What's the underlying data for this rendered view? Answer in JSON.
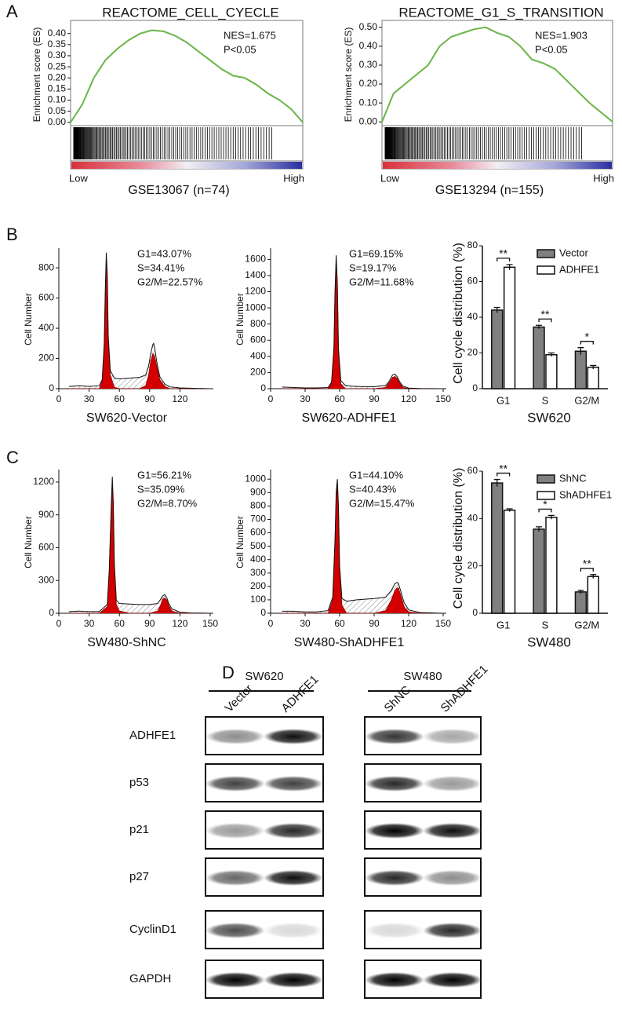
{
  "panel_labels": [
    "A",
    "B",
    "C",
    "D"
  ],
  "chart_data": [
    {
      "type": "line",
      "title": "REACTOME_CELL_CYECLE",
      "y_label": "Enrichment score (ES)",
      "x_label": "GSE13067 (n=74)",
      "x_low": "Low",
      "x_high": "High",
      "annotations": [
        "NES=1.675",
        "P<0.05"
      ],
      "color": "#6ab547",
      "ylim": [
        -0.015,
        0.445
      ],
      "yticks": [
        {
          "value": 0,
          "label": "0.00"
        },
        {
          "value": 0.05,
          "label": "0.05"
        },
        {
          "value": 0.1,
          "label": "0.10"
        },
        {
          "value": 0.15,
          "label": "0.15"
        },
        {
          "value": 0.2,
          "label": "0.20"
        },
        {
          "value": 0.25,
          "label": "0.25"
        },
        {
          "value": 0.3,
          "label": "0.30"
        },
        {
          "value": 0.35,
          "label": "0.35"
        },
        {
          "value": 0.4,
          "label": "0.40"
        }
      ],
      "values": [
        0,
        0.08,
        0.2,
        0.28,
        0.33,
        0.37,
        0.4,
        0.415,
        0.41,
        0.39,
        0.36,
        0.32,
        0.28,
        0.24,
        0.21,
        0.2,
        0.17,
        0.13,
        0.1,
        0.06,
        0
      ]
    },
    {
      "type": "line",
      "title": "REACTOME_G1_S_TRANSITION",
      "y_label": "Enrichment score (ES)",
      "x_label": "GSE13294 (n=155)",
      "x_low": "Low",
      "x_high": "High",
      "annotations": [
        "NES=1.903",
        "P<0.05"
      ],
      "color": "#6ab547",
      "ylim": [
        -0.02,
        0.52
      ],
      "yticks": [
        {
          "value": 0,
          "label": "0.00"
        },
        {
          "value": 0.1,
          "label": "0.10"
        },
        {
          "value": 0.2,
          "label": "0.20"
        },
        {
          "value": 0.3,
          "label": "0.30"
        },
        {
          "value": 0.4,
          "label": "0.40"
        },
        {
          "value": 0.5,
          "label": "0.50"
        }
      ],
      "values": [
        0,
        0.15,
        0.2,
        0.25,
        0.3,
        0.4,
        0.45,
        0.47,
        0.49,
        0.5,
        0.47,
        0.45,
        0.4,
        0.33,
        0.31,
        0.28,
        0.22,
        0.16,
        0.1,
        0.05,
        0
      ]
    },
    {
      "type": "area",
      "y_label": "Cell Number",
      "x_label": "SW620-Vector",
      "annotations": [
        "G1=43.07%",
        "S=34.41%",
        "G2/M=22.57%"
      ],
      "color": "#d40000",
      "xlim": [
        0,
        150
      ],
      "xticks": [
        0,
        30,
        60,
        90,
        120
      ],
      "ylim": [
        0,
        920
      ],
      "yticks": [
        0,
        200,
        400,
        600,
        800
      ],
      "x": [
        10,
        20,
        30,
        40,
        43,
        45,
        46,
        47,
        48,
        49,
        51,
        55,
        60,
        70,
        80,
        86,
        89,
        91,
        93,
        94,
        95,
        97,
        100,
        105,
        110,
        120,
        130,
        150
      ],
      "values": [
        15,
        20,
        15,
        20,
        60,
        300,
        650,
        900,
        750,
        350,
        120,
        70,
        65,
        70,
        75,
        90,
        150,
        230,
        290,
        300,
        270,
        180,
        80,
        30,
        12,
        5,
        3,
        0
      ],
      "fit_values": [
        0,
        0,
        0,
        0,
        50,
        280,
        620,
        860,
        720,
        330,
        90,
        10,
        0,
        0,
        0,
        20,
        90,
        180,
        230,
        230,
        210,
        150,
        60,
        15,
        0,
        0,
        0,
        0
      ]
    },
    {
      "type": "area",
      "y_label": "Cell Number",
      "x_label": "SW620-ADHFE1",
      "annotations": [
        "G1=69.15%",
        "S=19.17%",
        "G2/M=11.68%"
      ],
      "color": "#d40000",
      "xlim": [
        0,
        150
      ],
      "xticks": [
        0,
        30,
        60,
        90,
        120,
        150
      ],
      "ylim": [
        0,
        1720
      ],
      "yticks": [
        0,
        200,
        400,
        600,
        800,
        1000,
        1200,
        1400,
        1600
      ],
      "x": [
        10,
        20,
        30,
        40,
        50,
        53,
        55,
        56,
        57,
        58,
        59,
        61,
        65,
        70,
        80,
        90,
        100,
        103,
        106,
        108,
        110,
        112,
        115,
        120,
        130,
        150
      ],
      "values": [
        20,
        15,
        10,
        10,
        15,
        80,
        500,
        1200,
        1650,
        1300,
        500,
        100,
        40,
        30,
        25,
        25,
        40,
        90,
        170,
        180,
        150,
        90,
        30,
        8,
        2,
        0
      ],
      "fit_values": [
        0,
        0,
        0,
        0,
        0,
        70,
        480,
        1150,
        1600,
        1250,
        470,
        60,
        0,
        0,
        0,
        0,
        15,
        70,
        140,
        150,
        130,
        70,
        15,
        0,
        0,
        0
      ]
    },
    {
      "type": "bar",
      "y_label": "Cell cycle distribution (%)",
      "x_label": "SW620",
      "categories": [
        "G1",
        "S",
        "G2/M"
      ],
      "ylim": [
        0,
        80
      ],
      "yticks": [
        0,
        20,
        40,
        60,
        80
      ],
      "significance": [
        "**",
        "**",
        "*"
      ],
      "series": [
        {
          "name": "Vector",
          "color": "#808080",
          "values": [
            44,
            34.5,
            21
          ],
          "errors": [
            1.5,
            1,
            2
          ]
        },
        {
          "name": "ADHFE1",
          "color": "#ffffff",
          "values": [
            68,
            19,
            12
          ],
          "errors": [
            1.5,
            1,
            1
          ]
        }
      ]
    },
    {
      "type": "area",
      "y_label": "Cell Number",
      "x_label": "SW480-ShNC",
      "annotations": [
        "G1=56.21%",
        "S=35.09%",
        "G2/M=8.70%"
      ],
      "color": "#d40000",
      "xlim": [
        0,
        150
      ],
      "xticks": [
        0,
        30,
        60,
        90,
        120,
        150
      ],
      "ylim": [
        0,
        1300
      ],
      "yticks": [
        0,
        300,
        600,
        900,
        1200
      ],
      "x": [
        10,
        20,
        30,
        40,
        48,
        50,
        52,
        53,
        54,
        55,
        57,
        60,
        70,
        80,
        90,
        98,
        101,
        103,
        105,
        107,
        109,
        112,
        120,
        130,
        150
      ],
      "values": [
        15,
        20,
        15,
        15,
        80,
        400,
        1000,
        1250,
        1000,
        450,
        120,
        90,
        85,
        80,
        80,
        90,
        130,
        160,
        170,
        140,
        90,
        40,
        10,
        3,
        0
      ],
      "fit_values": [
        0,
        0,
        0,
        0,
        60,
        380,
        960,
        1200,
        960,
        420,
        80,
        20,
        0,
        0,
        0,
        20,
        80,
        130,
        140,
        120,
        70,
        20,
        0,
        0,
        0
      ]
    },
    {
      "type": "area",
      "y_label": "Cell Number",
      "x_label": "SW480-ShADHFE1",
      "annotations": [
        "G1=44.10%",
        "S=40.43%",
        "G2/M=15.47%"
      ],
      "color": "#d40000",
      "xlim": [
        0,
        150
      ],
      "xticks": [
        0,
        30,
        60,
        90,
        120,
        150
      ],
      "ylim": [
        0,
        1060
      ],
      "yticks": [
        0,
        100,
        200,
        300,
        400,
        500,
        600,
        700,
        800,
        900,
        1000
      ],
      "x": [
        10,
        20,
        30,
        40,
        50,
        54,
        56,
        57,
        58,
        59,
        60,
        62,
        66,
        75,
        90,
        100,
        105,
        108,
        110,
        111,
        113,
        116,
        120,
        130,
        150
      ],
      "values": [
        15,
        15,
        10,
        10,
        20,
        120,
        550,
        900,
        1000,
        800,
        350,
        110,
        90,
        100,
        110,
        120,
        170,
        220,
        230,
        225,
        170,
        80,
        25,
        5,
        0
      ],
      "fit_values": [
        0,
        0,
        0,
        0,
        0,
        100,
        520,
        860,
        960,
        760,
        320,
        60,
        0,
        0,
        0,
        20,
        100,
        170,
        190,
        190,
        140,
        50,
        10,
        0,
        0
      ]
    },
    {
      "type": "bar",
      "y_label": "Cell cycle distribution (%)",
      "x_label": "SW480",
      "categories": [
        "G1",
        "S",
        "G2/M"
      ],
      "ylim": [
        0,
        60
      ],
      "yticks": [
        0,
        20,
        40,
        60
      ],
      "significance": [
        "**",
        "*",
        "**"
      ],
      "series": [
        {
          "name": "ShNC",
          "color": "#808080",
          "values": [
            55,
            35.5,
            9
          ],
          "errors": [
            1.5,
            1,
            0.7
          ]
        },
        {
          "name": "ShADHFE1",
          "color": "#ffffff",
          "values": [
            43.5,
            40.5,
            15.5
          ],
          "errors": [
            0.6,
            0.8,
            0.8
          ]
        }
      ]
    }
  ],
  "western_blot": {
    "groups": [
      {
        "name": "SW620",
        "lanes": [
          "Vector",
          "ADHFE1"
        ]
      },
      {
        "name": "SW480",
        "lanes": [
          "ShNC",
          "ShADHFE1"
        ]
      }
    ],
    "proteins": [
      "ADHFE1",
      "p53",
      "p21",
      "p27",
      "CyclinD1",
      "GAPDH"
    ]
  }
}
